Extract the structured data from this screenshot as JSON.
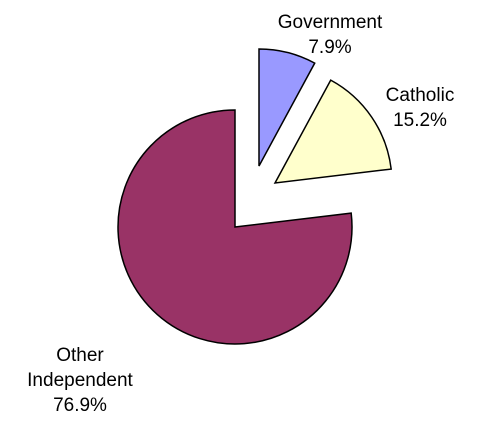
{
  "chart_data": {
    "type": "pie",
    "title": "",
    "slices": [
      {
        "label_lines": [
          "Government",
          "7.9%"
        ],
        "name": "Government",
        "value": 7.9,
        "color": "#9999ff"
      },
      {
        "label_lines": [
          "Catholic",
          "15.2%"
        ],
        "name": "Catholic",
        "value": 15.2,
        "color": "#ffffcc"
      },
      {
        "label_lines": [
          "Other",
          "Independent",
          "76.9%"
        ],
        "name": "Other Independent",
        "value": 76.9,
        "color": "#993366"
      }
    ],
    "exploded": true,
    "legend": "none",
    "start": "top, clockwise"
  }
}
